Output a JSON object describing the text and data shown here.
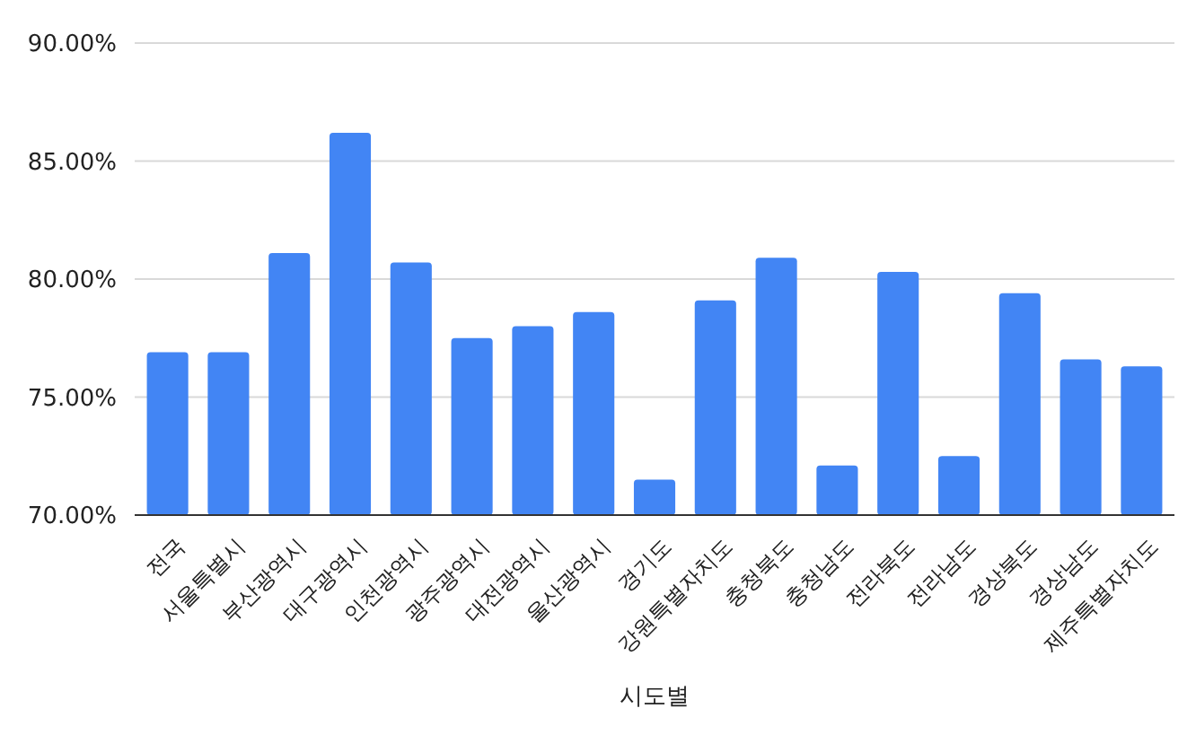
{
  "chart_data": {
    "type": "bar",
    "xlabel": "시도별",
    "categories": [
      "전국",
      "서울특별시",
      "부산광역시",
      "대구광역시",
      "인천광역시",
      "광주광역시",
      "대전광역시",
      "울산광역시",
      "경기도",
      "강원특별자치도",
      "충청북도",
      "충청남도",
      "전라북도",
      "전라남도",
      "경상북도",
      "경상남도",
      "제주특별자치도"
    ],
    "values": [
      76.9,
      76.9,
      81.1,
      86.2,
      80.7,
      77.5,
      78.0,
      78.6,
      71.5,
      79.1,
      80.9,
      72.1,
      80.3,
      72.5,
      79.4,
      76.6,
      76.3
    ],
    "color": "#4285f4",
    "ylim": [
      70,
      90
    ],
    "yticks": [
      {
        "value": 70,
        "label": "70.00%"
      },
      {
        "value": 75,
        "label": "75.00%"
      },
      {
        "value": 80,
        "label": "80.00%"
      },
      {
        "value": 85,
        "label": "85.00%"
      },
      {
        "value": 90,
        "label": "90.00%"
      }
    ],
    "grid": "y"
  }
}
